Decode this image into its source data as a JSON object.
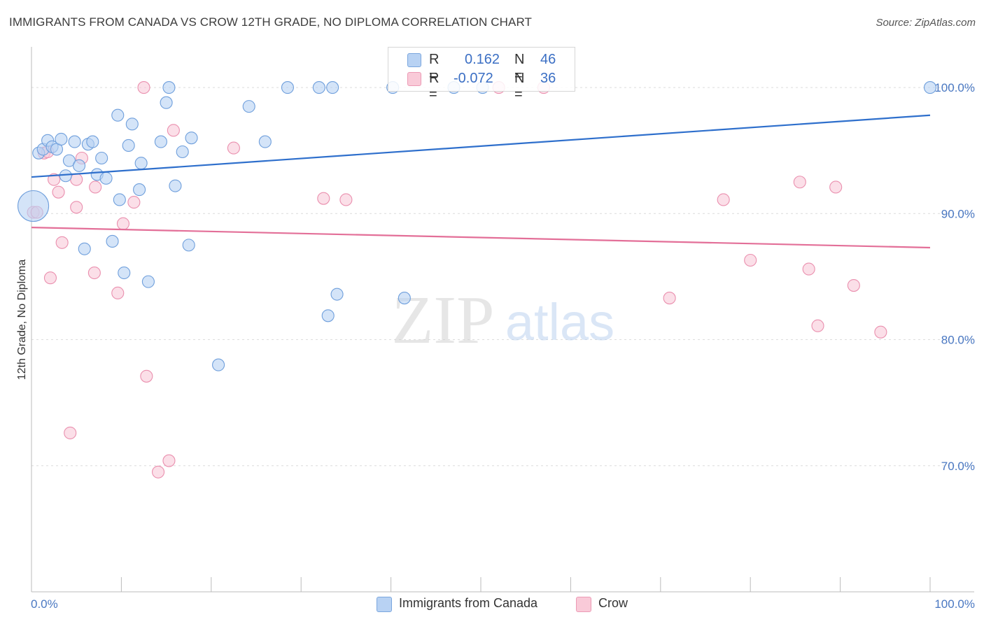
{
  "header": {
    "title": "IMMIGRANTS FROM CANADA VS CROW 12TH GRADE, NO DIPLOMA CORRELATION CHART",
    "source": "Source: ZipAtlas.com"
  },
  "watermark": {
    "zip": "ZIP",
    "atlas": "atlas"
  },
  "legend": {
    "r_label": "R =",
    "n_label": "N =",
    "rows": [
      {
        "name": "Immigrants from Canada",
        "r": "0.162",
        "n": "46",
        "color": "#a9c8f0"
      },
      {
        "name": "Crow",
        "r": "-0.072",
        "n": "36",
        "color": "#f7b9cb"
      }
    ]
  },
  "colors": {
    "blue_line": "#2e6fcc",
    "pink_line": "#e36f98",
    "blue_fill": "#b8d2f3",
    "pink_fill": "#f9cad8",
    "blue_stroke": "#6f9fdc",
    "pink_stroke": "#ea8fae"
  },
  "chart_data": {
    "type": "scatter",
    "title": "IMMIGRANTS FROM CANADA VS CROW 12TH GRADE, NO DIPLOMA CORRELATION CHART",
    "xlabel": "",
    "ylabel": "12th Grade, No Diploma",
    "xlim": [
      0,
      100
    ],
    "ylim": [
      60,
      103.5
    ],
    "x_tick_labels": [
      "0.0%",
      "100.0%"
    ],
    "y_ticks": [
      100,
      90,
      80,
      70
    ],
    "y_tick_labels": [
      "100.0%",
      "90.0%",
      "80.0%",
      "70.0%"
    ],
    "grid": true,
    "series": [
      {
        "name": "Immigrants from Canada",
        "r": 0.162,
        "n": 46,
        "trend": {
          "x": [
            0,
            100
          ],
          "y": [
            92.9,
            97.8
          ]
        },
        "points": [
          {
            "x": 0.2,
            "y": 90.6,
            "big": true
          },
          {
            "x": 0.8,
            "y": 94.8
          },
          {
            "x": 1.3,
            "y": 95.1
          },
          {
            "x": 1.8,
            "y": 95.8
          },
          {
            "x": 2.3,
            "y": 95.3
          },
          {
            "x": 2.8,
            "y": 95.1
          },
          {
            "x": 3.3,
            "y": 95.9
          },
          {
            "x": 3.8,
            "y": 93.0
          },
          {
            "x": 4.2,
            "y": 94.2
          },
          {
            "x": 4.8,
            "y": 95.7
          },
          {
            "x": 5.3,
            "y": 93.8
          },
          {
            "x": 6.3,
            "y": 95.5
          },
          {
            "x": 6.8,
            "y": 95.7
          },
          {
            "x": 7.3,
            "y": 93.1
          },
          {
            "x": 7.8,
            "y": 94.4
          },
          {
            "x": 8.3,
            "y": 92.8
          },
          {
            "x": 9.6,
            "y": 97.8
          },
          {
            "x": 9.8,
            "y": 91.1
          },
          {
            "x": 10.8,
            "y": 95.4
          },
          {
            "x": 11.2,
            "y": 97.1
          },
          {
            "x": 12.2,
            "y": 94.0
          },
          {
            "x": 12.0,
            "y": 91.9
          },
          {
            "x": 14.4,
            "y": 95.7
          },
          {
            "x": 15.0,
            "y": 98.8
          },
          {
            "x": 15.3,
            "y": 100.0
          },
          {
            "x": 16.0,
            "y": 92.2
          },
          {
            "x": 16.8,
            "y": 94.9
          },
          {
            "x": 17.8,
            "y": 96.0
          },
          {
            "x": 24.2,
            "y": 98.5
          },
          {
            "x": 26.0,
            "y": 95.7
          },
          {
            "x": 28.5,
            "y": 100.0
          },
          {
            "x": 32.0,
            "y": 100.0
          },
          {
            "x": 33.5,
            "y": 100.0
          },
          {
            "x": 40.2,
            "y": 100.0
          },
          {
            "x": 47.0,
            "y": 100.0
          },
          {
            "x": 50.2,
            "y": 100.0
          },
          {
            "x": 100.0,
            "y": 100.0
          },
          {
            "x": 5.9,
            "y": 87.2
          },
          {
            "x": 9.0,
            "y": 87.8
          },
          {
            "x": 10.3,
            "y": 85.3
          },
          {
            "x": 13.0,
            "y": 84.6
          },
          {
            "x": 17.5,
            "y": 87.5
          },
          {
            "x": 34.0,
            "y": 83.6
          },
          {
            "x": 41.5,
            "y": 83.3
          },
          {
            "x": 33.0,
            "y": 81.9
          },
          {
            "x": 20.8,
            "y": 78.0
          }
        ]
      },
      {
        "name": "Crow",
        "r": -0.072,
        "n": 36,
        "trend": {
          "x": [
            0,
            100
          ],
          "y": [
            88.9,
            87.3
          ]
        },
        "points": [
          {
            "x": 0.2,
            "y": 90.1
          },
          {
            "x": 0.6,
            "y": 90.1
          },
          {
            "x": 1.4,
            "y": 94.8
          },
          {
            "x": 1.8,
            "y": 94.9
          },
          {
            "x": 2.5,
            "y": 92.7
          },
          {
            "x": 3.0,
            "y": 91.7
          },
          {
            "x": 3.4,
            "y": 87.7
          },
          {
            "x": 2.1,
            "y": 84.9
          },
          {
            "x": 5.0,
            "y": 92.7
          },
          {
            "x": 5.6,
            "y": 94.4
          },
          {
            "x": 5.0,
            "y": 90.5
          },
          {
            "x": 7.0,
            "y": 85.3
          },
          {
            "x": 7.1,
            "y": 92.1
          },
          {
            "x": 9.6,
            "y": 83.7
          },
          {
            "x": 10.2,
            "y": 89.2
          },
          {
            "x": 11.4,
            "y": 90.9
          },
          {
            "x": 12.5,
            "y": 100.0
          },
          {
            "x": 15.8,
            "y": 96.6
          },
          {
            "x": 22.5,
            "y": 95.2
          },
          {
            "x": 32.5,
            "y": 91.2
          },
          {
            "x": 35.0,
            "y": 91.1
          },
          {
            "x": 12.8,
            "y": 77.1
          },
          {
            "x": 4.3,
            "y": 72.6
          },
          {
            "x": 15.3,
            "y": 70.4
          },
          {
            "x": 14.1,
            "y": 69.5
          },
          {
            "x": 52.0,
            "y": 100.0
          },
          {
            "x": 57.0,
            "y": 100.0
          },
          {
            "x": 71.0,
            "y": 83.3
          },
          {
            "x": 77.0,
            "y": 91.1
          },
          {
            "x": 80.0,
            "y": 86.3
          },
          {
            "x": 85.5,
            "y": 92.5
          },
          {
            "x": 86.5,
            "y": 85.6
          },
          {
            "x": 87.5,
            "y": 81.1
          },
          {
            "x": 89.5,
            "y": 92.1
          },
          {
            "x": 91.5,
            "y": 84.3
          },
          {
            "x": 94.5,
            "y": 80.6
          }
        ]
      }
    ]
  }
}
